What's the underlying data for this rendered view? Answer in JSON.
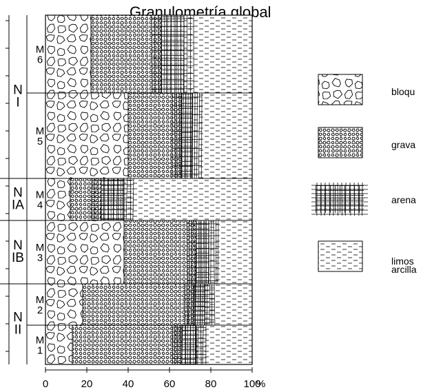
{
  "chart_data": {
    "type": "bar",
    "orientation": "horizontal",
    "stacked": true,
    "title": "Granulometría global",
    "x_axis": {
      "ticks": [
        "0",
        "20",
        "40",
        "60",
        "80",
        "100"
      ],
      "unit": "%",
      "range": [
        0,
        100
      ]
    },
    "levels": [
      {
        "label": "N I",
        "samples": [
          "M 6",
          "M 5"
        ]
      },
      {
        "label": "N IA",
        "samples": [
          "M 4"
        ]
      },
      {
        "label": "N IB",
        "samples": [
          "M 3"
        ]
      },
      {
        "label": "N II",
        "samples": [
          "M 2",
          "M 1"
        ]
      }
    ],
    "samples": [
      "M 6",
      "M 5",
      "M 4",
      "M 3",
      "M 2",
      "M 1"
    ],
    "series": [
      {
        "name": "bloques",
        "pattern": "blocks",
        "values": [
          22,
          40,
          12,
          38,
          18,
          13
        ]
      },
      {
        "name": "grava",
        "pattern": "gravel",
        "values": [
          34,
          26,
          15,
          35,
          54,
          53
        ]
      },
      {
        "name": "arena",
        "pattern": "sand",
        "values": [
          11,
          5,
          11,
          6,
          5,
          7
        ]
      },
      {
        "name": "limos arcilla",
        "pattern": "silt",
        "values": [
          33,
          29,
          62,
          21,
          23,
          27
        ]
      }
    ],
    "legend": {
      "position": "right",
      "entries": [
        "bloqu",
        "grava",
        "arena",
        "limos arcilla"
      ]
    },
    "grid": false
  }
}
